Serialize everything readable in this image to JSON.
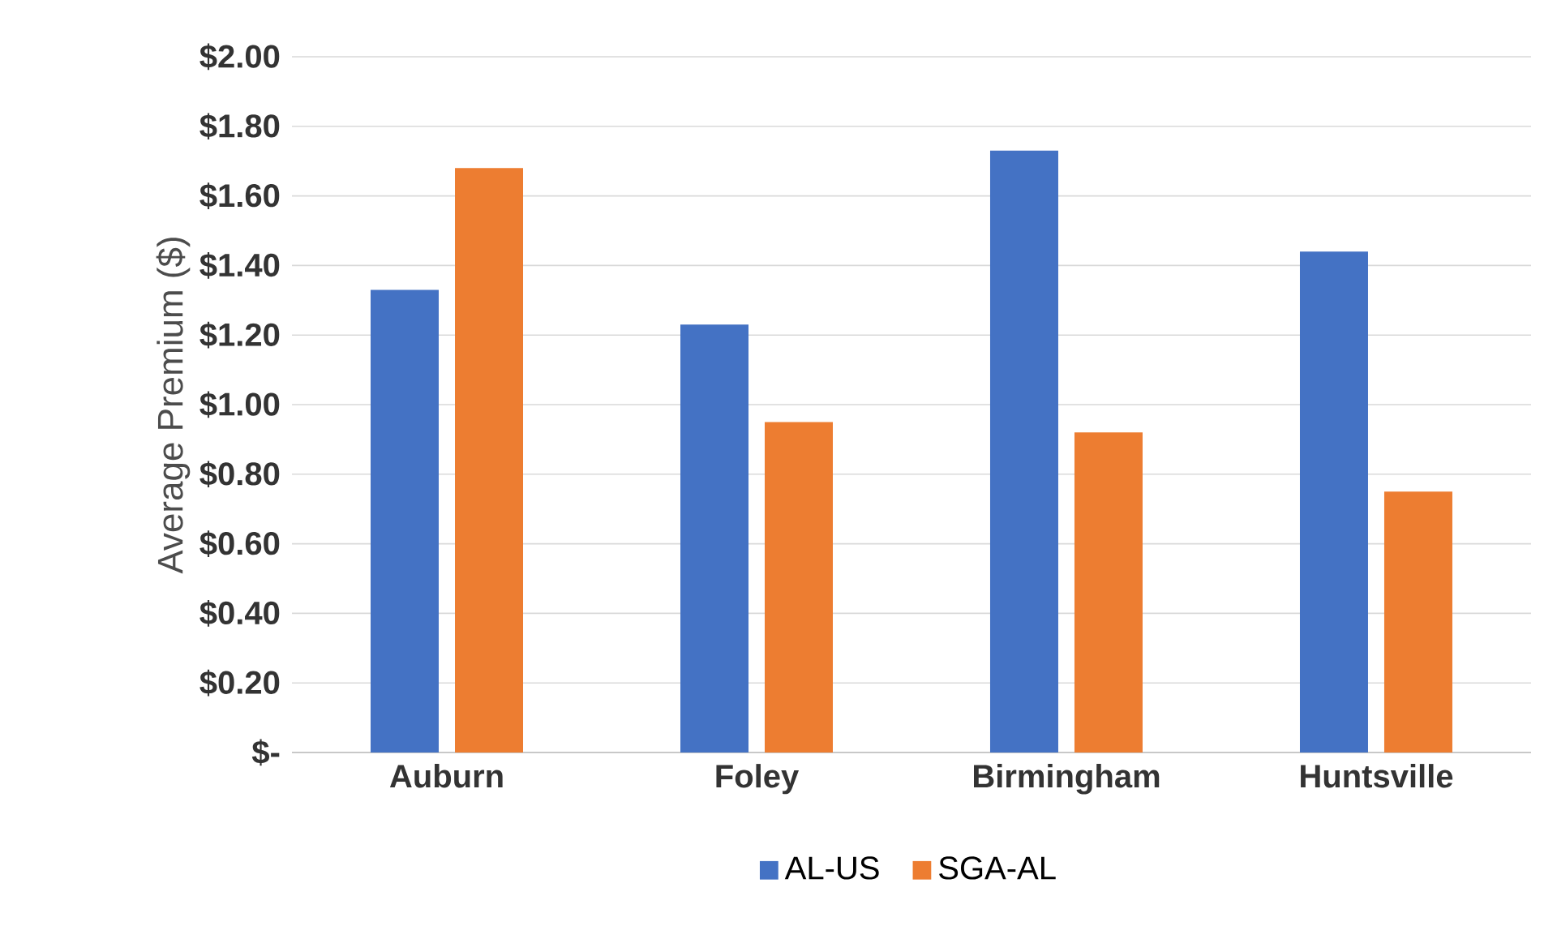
{
  "chart_data": {
    "type": "bar",
    "ylabel": "Average Premium ($)",
    "categories": [
      "Auburn",
      "Foley",
      "Birmingham",
      "Huntsville"
    ],
    "series": [
      {
        "name": "AL-US",
        "color": "#4472c4",
        "values": [
          1.33,
          1.23,
          1.73,
          1.44
        ]
      },
      {
        "name": "SGA-AL",
        "color": "#ed7d31",
        "values": [
          1.68,
          0.95,
          0.92,
          0.75
        ]
      }
    ],
    "ylim": [
      0,
      2
    ],
    "yticks": [
      {
        "value": 0,
        "label": "$-"
      },
      {
        "value": 0.2,
        "label": "$0.20"
      },
      {
        "value": 0.4,
        "label": "$0.40"
      },
      {
        "value": 0.6,
        "label": "$0.60"
      },
      {
        "value": 0.8,
        "label": "$0.80"
      },
      {
        "value": 1.0,
        "label": "$1.00"
      },
      {
        "value": 1.2,
        "label": "$1.20"
      },
      {
        "value": 1.4,
        "label": "$1.40"
      },
      {
        "value": 1.6,
        "label": "$1.60"
      },
      {
        "value": 1.8,
        "label": "$1.80"
      },
      {
        "value": 2.0,
        "label": "$2.00"
      }
    ],
    "grid": "y",
    "legend": "bottom"
  }
}
